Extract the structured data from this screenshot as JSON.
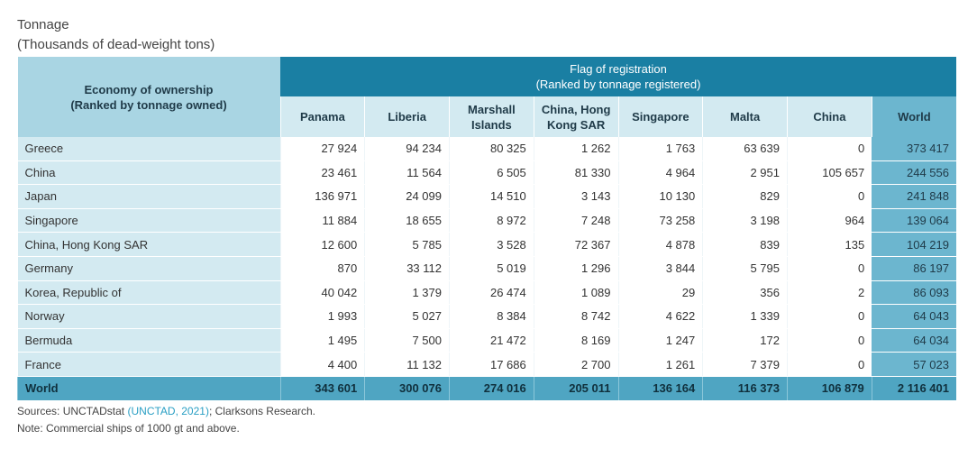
{
  "header": {
    "title": "Tonnage",
    "subtitle": "(Thousands of dead-weight tons)"
  },
  "table": {
    "row_header": {
      "title": "Economy of ownership",
      "subtitle": "(Ranked by tonnage owned)"
    },
    "group_header": {
      "title": "Flag of registration",
      "subtitle": "(Ranked by tonnage registered)"
    },
    "columns": [
      "Panama",
      "Liberia",
      "Marshall Islands",
      "China, Hong Kong SAR",
      "Singapore",
      "Malta",
      "China",
      "World"
    ],
    "rows": [
      {
        "name": "Greece",
        "values": [
          "27 924",
          "94 234",
          "80 325",
          "1 262",
          "1 763",
          "63 639",
          "0",
          "373 417"
        ]
      },
      {
        "name": "China",
        "values": [
          "23 461",
          "11 564",
          "6 505",
          "81 330",
          "4 964",
          "2 951",
          "105 657",
          "244 556"
        ]
      },
      {
        "name": "Japan",
        "values": [
          "136 971",
          "24 099",
          "14 510",
          "3 143",
          "10 130",
          "829",
          "0",
          "241 848"
        ]
      },
      {
        "name": "Singapore",
        "values": [
          "11 884",
          "18 655",
          "8 972",
          "7 248",
          "73 258",
          "3 198",
          "964",
          "139 064"
        ]
      },
      {
        "name": "China, Hong Kong SAR",
        "values": [
          "12 600",
          "5 785",
          "3 528",
          "72 367",
          "4 878",
          "839",
          "135",
          "104 219"
        ]
      },
      {
        "name": "Germany",
        "values": [
          "870",
          "33 112",
          "5 019",
          "1 296",
          "3 844",
          "5 795",
          "0",
          "86 197"
        ]
      },
      {
        "name": "Korea, Republic of",
        "values": [
          "40 042",
          "1 379",
          "26 474",
          "1 089",
          "29",
          "356",
          "2",
          "86 093"
        ]
      },
      {
        "name": "Norway",
        "values": [
          "1 993",
          "5 027",
          "8 384",
          "8 742",
          "4 622",
          "1 339",
          "0",
          "64 043"
        ]
      },
      {
        "name": "Bermuda",
        "values": [
          "1 495",
          "7 500",
          "21 472",
          "8 169",
          "1 247",
          "172",
          "0",
          "64 034"
        ]
      },
      {
        "name": "France",
        "values": [
          "4 400",
          "11 132",
          "17 686",
          "2 700",
          "1 261",
          "7 379",
          "0",
          "57 023"
        ]
      }
    ],
    "total": {
      "name": "World",
      "values": [
        "343 601",
        "300 076",
        "274 016",
        "205 011",
        "136 164",
        "116 373",
        "106 879",
        "2 116 401"
      ]
    }
  },
  "footer": {
    "sources_prefix": "Sources: UNCTADstat ",
    "sources_link": "(UNCTAD, 2021)",
    "sources_suffix": "; Clarksons Research.",
    "note": "Note: Commercial ships of 1000 gt and above."
  }
}
